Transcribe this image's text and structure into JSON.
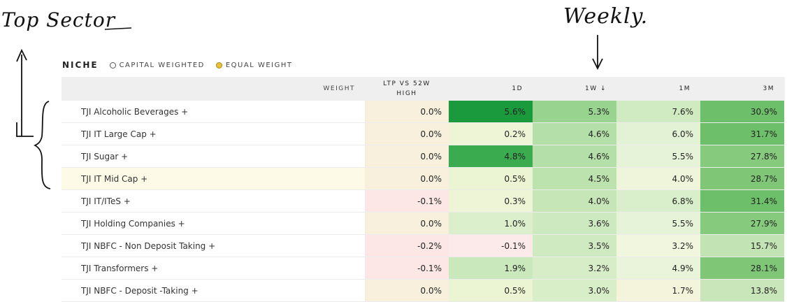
{
  "annotations": {
    "top_sector": "Top Sector",
    "weekly": "Weekly."
  },
  "controls": {
    "title": "NICHE",
    "capital_weighted": "CAPITAL WEIGHTED",
    "equal_weight": "EQUAL WEIGHT"
  },
  "headers": {
    "weight": "WEIGHT",
    "ltp": "LTP VS 52W HIGH",
    "d1": "1D",
    "w1": "1W ↓",
    "m1": "1M",
    "m3": "3M"
  },
  "colors": {
    "ltp_neutral": "#f8f0dc",
    "ltp_negative": "#fce6e6"
  },
  "rows": [
    {
      "name": "TJI Alcoholic Beverages +",
      "ltp": "0.0%",
      "d1": "5.6%",
      "w1": "5.3%",
      "m1": "7.6%",
      "m3": "30.9%",
      "c_ltp": "#f8f0dc",
      "c_d1": "#1a9a3c",
      "c_w1": "#98d390",
      "c_m1": "#d0ebc1",
      "c_m3": "#6dc069"
    },
    {
      "name": "TJI IT Large Cap +",
      "ltp": "0.0%",
      "d1": "0.2%",
      "w1": "4.6%",
      "m1": "6.0%",
      "m3": "31.7%",
      "c_ltp": "#f8f0dc",
      "c_d1": "#eef5d6",
      "c_w1": "#b5dfa8",
      "c_m1": "#e3f2d5",
      "c_m3": "#6dc069"
    },
    {
      "name": "TJI Sugar +",
      "ltp": "0.0%",
      "d1": "4.8%",
      "w1": "4.6%",
      "m1": "5.5%",
      "m3": "27.8%",
      "c_ltp": "#f8f0dc",
      "c_d1": "#3aab4e",
      "c_w1": "#b5dfa8",
      "c_m1": "#e6f3d8",
      "c_m3": "#86cb7d"
    },
    {
      "name": "TJI IT Mid Cap +",
      "ltp": "0.0%",
      "d1": "0.5%",
      "w1": "4.5%",
      "m1": "4.0%",
      "m3": "28.7%",
      "c_ltp": "#f8f0dc",
      "c_d1": "#ecf5d3",
      "c_w1": "#bce2ae",
      "c_m1": "#eef5da",
      "c_m3": "#7fc776",
      "highlight": true
    },
    {
      "name": "TJI IT/ITeS +",
      "ltp": "-0.1%",
      "d1": "0.3%",
      "w1": "4.0%",
      "m1": "6.8%",
      "m3": "31.4%",
      "c_ltp": "#fce6e6",
      "c_d1": "#eef5d6",
      "c_w1": "#c6e6b7",
      "c_m1": "#d9eeca",
      "c_m3": "#6dc069"
    },
    {
      "name": "TJI Holding Companies +",
      "ltp": "0.0%",
      "d1": "1.0%",
      "w1": "3.6%",
      "m1": "5.5%",
      "m3": "27.9%",
      "c_ltp": "#f8f0dc",
      "c_d1": "#dcefcc",
      "c_w1": "#cde9bf",
      "c_m1": "#e6f3d8",
      "c_m3": "#86cb7d"
    },
    {
      "name": "TJI NBFC - Non Deposit Taking +",
      "ltp": "-0.2%",
      "d1": "-0.1%",
      "w1": "3.5%",
      "m1": "3.2%",
      "m3": "15.7%",
      "c_ltp": "#fce6e6",
      "c_d1": "#fceaea",
      "c_w1": "#cfeac1",
      "c_m1": "#f1f6de",
      "c_m3": "#c2e4b4"
    },
    {
      "name": "TJI Transformers +",
      "ltp": "-0.1%",
      "d1": "1.9%",
      "w1": "3.2%",
      "m1": "4.9%",
      "m3": "28.1%",
      "c_ltp": "#fce6e6",
      "c_d1": "#c9e8bb",
      "c_w1": "#d6edc8",
      "c_m1": "#e9f4da",
      "c_m3": "#7fc776"
    },
    {
      "name": "TJI NBFC - Deposit -Taking +",
      "ltp": "0.0%",
      "d1": "0.5%",
      "w1": "3.0%",
      "m1": "1.7%",
      "m3": "13.8%",
      "c_ltp": "#f8f0dc",
      "c_d1": "#ecf5d3",
      "c_w1": "#d8eec9",
      "c_m1": "#f4f3dc",
      "c_m3": "#c8e6b9"
    }
  ]
}
